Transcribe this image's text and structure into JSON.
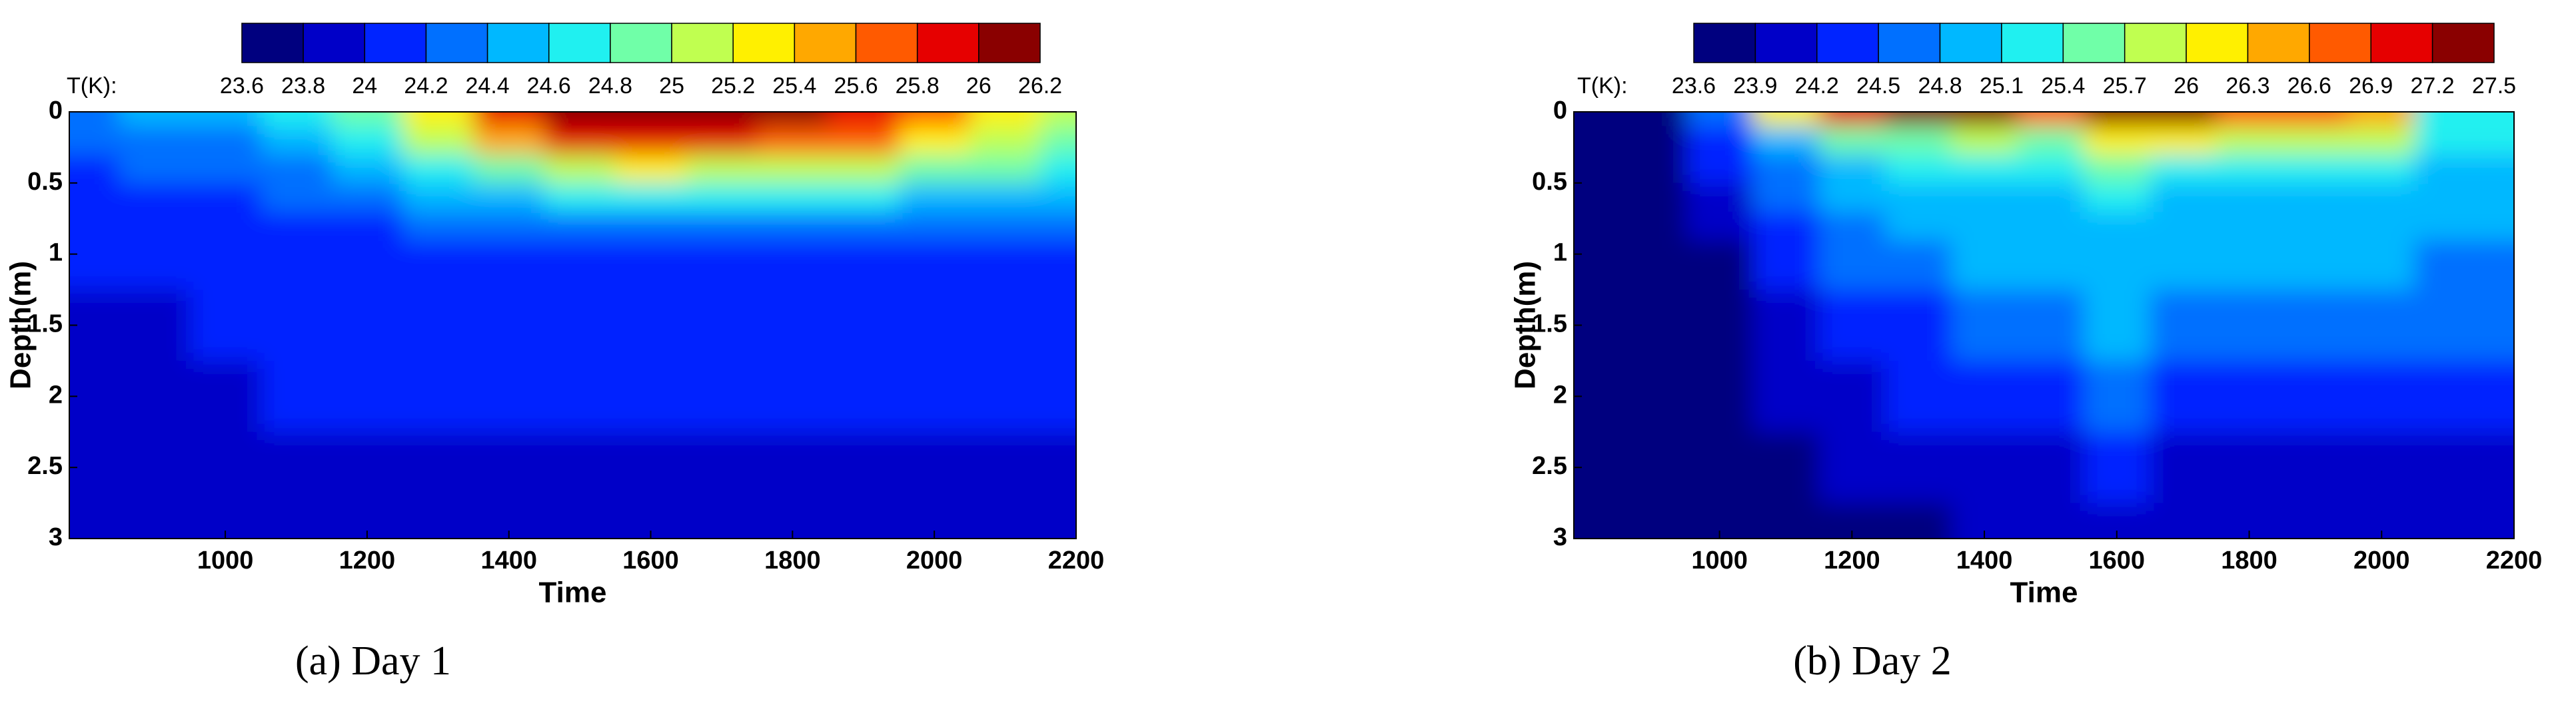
{
  "chart_data": [
    {
      "type": "heatmap",
      "caption": "(a) Day 1",
      "xlabel": "Time",
      "ylabel": "Depth(m)",
      "colorbar_label": "T(K):",
      "xlim": [
        780,
        2200
      ],
      "xticks": [
        1000,
        1200,
        1400,
        1600,
        1800,
        2000,
        2200
      ],
      "ylim": [
        3,
        0
      ],
      "yticks": [
        0,
        0.5,
        1,
        1.5,
        2,
        2.5,
        3
      ],
      "levels": [
        23.6,
        23.8,
        24,
        24.2,
        24.4,
        24.6,
        24.8,
        25,
        25.2,
        25.4,
        25.6,
        25.8,
        26,
        26.2
      ],
      "colorbar_colors": [
        "#00007f",
        "#0000c8",
        "#0024ff",
        "#0070ff",
        "#00b8ff",
        "#20f0f0",
        "#70ffa8",
        "#c0ff50",
        "#fff000",
        "#ffa800",
        "#ff5a00",
        "#e60000",
        "#8a0000"
      ],
      "x": [
        800,
        900,
        1000,
        1100,
        1200,
        1300,
        1400,
        1500,
        1600,
        1700,
        1800,
        1900,
        2000,
        2100,
        2200
      ],
      "y": [
        0,
        0.2,
        0.4,
        0.6,
        0.8,
        1,
        1.5,
        2,
        2.5,
        3
      ],
      "z": [
        [
          24.3,
          24.4,
          24.4,
          24.6,
          24.9,
          25.3,
          25.8,
          26.1,
          26.2,
          26.1,
          26.0,
          25.9,
          25.6,
          25.3,
          25.1
        ],
        [
          24.2,
          24.3,
          24.3,
          24.5,
          24.7,
          25.0,
          25.4,
          25.8,
          25.9,
          25.8,
          25.7,
          25.6,
          25.3,
          25.0,
          24.9
        ],
        [
          24.1,
          24.2,
          24.2,
          24.3,
          24.5,
          24.7,
          24.9,
          25.1,
          25.2,
          25.1,
          25.1,
          25.0,
          24.9,
          24.8,
          24.7
        ],
        [
          24.0,
          24.1,
          24.1,
          24.2,
          24.3,
          24.4,
          24.5,
          24.6,
          24.6,
          24.6,
          24.6,
          24.6,
          24.5,
          24.5,
          24.5
        ],
        [
          24.0,
          24.0,
          24.0,
          24.1,
          24.1,
          24.2,
          24.2,
          24.3,
          24.3,
          24.3,
          24.3,
          24.3,
          24.3,
          24.3,
          24.2
        ],
        [
          24.0,
          24.0,
          24.0,
          24.0,
          24.1,
          24.1,
          24.1,
          24.1,
          24.1,
          24.1,
          24.1,
          24.1,
          24.1,
          24.1,
          24.1
        ],
        [
          23.9,
          23.9,
          24.0,
          24.0,
          24.0,
          24.0,
          24.0,
          24.0,
          24.0,
          24.0,
          24.0,
          24.0,
          24.0,
          24.0,
          24.0
        ],
        [
          23.9,
          23.9,
          23.9,
          24.0,
          24.0,
          24.0,
          24.0,
          24.0,
          24.0,
          24.0,
          24.0,
          24.0,
          24.0,
          24.0,
          24.0
        ],
        [
          23.8,
          23.8,
          23.9,
          23.9,
          23.9,
          23.9,
          23.9,
          23.9,
          23.9,
          23.9,
          23.9,
          23.9,
          23.9,
          23.9,
          23.9
        ],
        [
          23.8,
          23.8,
          23.9,
          23.9,
          23.9,
          23.9,
          23.9,
          23.9,
          23.9,
          23.9,
          23.9,
          23.9,
          23.9,
          23.9,
          23.9
        ]
      ]
    },
    {
      "type": "heatmap",
      "caption": "(b) Day 2",
      "xlabel": "Time",
      "ylabel": "Depth(m)",
      "colorbar_label": "T(K):",
      "xlim": [
        780,
        2200
      ],
      "xticks": [
        1000,
        1200,
        1400,
        1600,
        1800,
        2000,
        2200
      ],
      "ylim": [
        3,
        0
      ],
      "yticks": [
        0,
        0.5,
        1,
        1.5,
        2,
        2.5,
        3
      ],
      "levels": [
        23.6,
        23.9,
        24.2,
        24.5,
        24.8,
        25.1,
        25.4,
        25.7,
        26,
        26.3,
        26.6,
        26.9,
        27.2,
        27.5
      ],
      "colorbar_colors": [
        "#00007f",
        "#0000c8",
        "#0024ff",
        "#0070ff",
        "#00b8ff",
        "#20f0f0",
        "#70ffa8",
        "#c0ff50",
        "#fff000",
        "#ffa800",
        "#ff5a00",
        "#e60000",
        "#8a0000"
      ],
      "x": [
        800,
        900,
        1000,
        1100,
        1200,
        1300,
        1400,
        1500,
        1600,
        1700,
        1800,
        1900,
        2000,
        2100,
        2200
      ],
      "y": [
        0,
        0.2,
        0.4,
        0.6,
        0.8,
        1,
        1.5,
        2,
        2.5,
        3
      ],
      "z": [
        [
          23.7,
          23.8,
          24.5,
          26.0,
          27.0,
          27.3,
          27.4,
          26.6,
          27.2,
          27.3,
          26.8,
          26.6,
          26.5,
          25.3,
          25.2
        ],
        [
          23.7,
          23.8,
          24.4,
          25.0,
          25.4,
          25.6,
          25.8,
          25.6,
          26.0,
          26.2,
          25.9,
          25.9,
          25.8,
          25.2,
          25.1
        ],
        [
          23.7,
          23.8,
          24.2,
          24.7,
          25.0,
          25.1,
          25.2,
          25.1,
          25.4,
          25.3,
          25.2,
          25.2,
          25.2,
          25.0,
          25.0
        ],
        [
          23.7,
          23.7,
          24.0,
          24.5,
          24.8,
          24.9,
          25.0,
          25.0,
          25.1,
          25.0,
          25.0,
          25.0,
          25.0,
          24.9,
          24.9
        ],
        [
          23.7,
          23.7,
          23.9,
          24.3,
          24.7,
          24.8,
          24.9,
          24.9,
          25.0,
          24.9,
          24.9,
          24.9,
          24.9,
          24.8,
          24.8
        ],
        [
          23.7,
          23.7,
          23.8,
          24.2,
          24.6,
          24.7,
          24.8,
          24.8,
          24.9,
          24.8,
          24.8,
          24.8,
          24.8,
          24.7,
          24.7
        ],
        [
          23.7,
          23.7,
          23.8,
          24.0,
          24.3,
          24.4,
          24.5,
          24.7,
          24.8,
          24.6,
          24.6,
          24.6,
          24.6,
          24.5,
          24.5
        ],
        [
          23.7,
          23.7,
          23.7,
          23.9,
          24.1,
          24.2,
          24.3,
          24.4,
          24.5,
          24.4,
          24.4,
          24.4,
          24.4,
          24.3,
          24.3
        ],
        [
          23.7,
          23.7,
          23.7,
          23.8,
          23.9,
          24.0,
          24.0,
          24.1,
          24.2,
          24.1,
          24.1,
          24.1,
          24.1,
          24.1,
          24.1
        ],
        [
          23.6,
          23.6,
          23.7,
          23.7,
          23.8,
          23.8,
          23.9,
          23.9,
          23.9,
          23.9,
          23.9,
          23.9,
          23.9,
          23.9,
          23.9
        ]
      ]
    }
  ]
}
